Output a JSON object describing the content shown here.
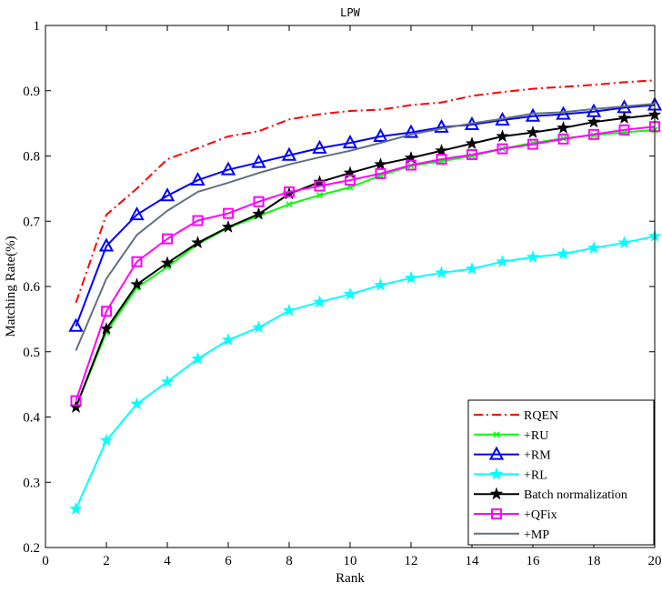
{
  "chart_data": {
    "type": "line",
    "title": "LPW",
    "xlabel": "Rank",
    "ylabel": "Matching Rate(%)",
    "xlim": [
      0,
      20
    ],
    "ylim": [
      0.2,
      1.0
    ],
    "xticks": [
      "0",
      "2",
      "4",
      "6",
      "8",
      "10",
      "12",
      "14",
      "16",
      "18",
      "20"
    ],
    "yticks": [
      "0.2",
      "0.3",
      "0.4",
      "0.5",
      "0.6",
      "0.7",
      "0.8",
      "0.9",
      "1"
    ],
    "grid": false,
    "legend_position": "bottom-right",
    "x": [
      1,
      2,
      3,
      4,
      5,
      6,
      7,
      8,
      9,
      10,
      11,
      12,
      13,
      14,
      15,
      16,
      17,
      18,
      19,
      20
    ],
    "series": [
      {
        "name": "RQEN",
        "color": "#ff0000",
        "dash": "dashdot",
        "marker": "none",
        "values": [
          0.575,
          0.71,
          0.75,
          0.795,
          0.812,
          0.83,
          0.838,
          0.856,
          0.864,
          0.869,
          0.871,
          0.878,
          0.882,
          0.892,
          0.898,
          0.903,
          0.906,
          0.909,
          0.913,
          0.916
        ]
      },
      {
        "name": "+RU",
        "color": "#00ff00",
        "dash": "solid",
        "marker": "x",
        "values": [
          0.415,
          0.53,
          0.598,
          0.63,
          0.665,
          0.69,
          0.708,
          0.726,
          0.74,
          0.752,
          0.77,
          0.785,
          0.792,
          0.8,
          0.811,
          0.82,
          0.827,
          0.832,
          0.836,
          0.84
        ]
      },
      {
        "name": "+RM",
        "color": "#0000ff",
        "dash": "solid",
        "marker": "triangle",
        "values": [
          0.539,
          0.662,
          0.71,
          0.739,
          0.763,
          0.779,
          0.79,
          0.801,
          0.812,
          0.82,
          0.83,
          0.836,
          0.844,
          0.848,
          0.855,
          0.861,
          0.864,
          0.868,
          0.874,
          0.878
        ]
      },
      {
        "name": "+RL",
        "color": "#00ffff",
        "dash": "solid",
        "marker": "star",
        "values": [
          0.259,
          0.364,
          0.42,
          0.454,
          0.489,
          0.518,
          0.537,
          0.563,
          0.576,
          0.588,
          0.602,
          0.613,
          0.621,
          0.627,
          0.638,
          0.645,
          0.65,
          0.659,
          0.667,
          0.677
        ]
      },
      {
        "name": "Batch normalization",
        "color": "#000000",
        "dash": "solid",
        "marker": "star",
        "values": [
          0.415,
          0.535,
          0.603,
          0.636,
          0.667,
          0.691,
          0.711,
          0.742,
          0.76,
          0.774,
          0.787,
          0.797,
          0.808,
          0.819,
          0.83,
          0.836,
          0.843,
          0.852,
          0.858,
          0.863
        ]
      },
      {
        "name": "+QFix",
        "color": "#ff00ff",
        "dash": "solid",
        "marker": "square",
        "values": [
          0.425,
          0.562,
          0.638,
          0.673,
          0.701,
          0.712,
          0.73,
          0.745,
          0.754,
          0.763,
          0.773,
          0.786,
          0.795,
          0.802,
          0.811,
          0.818,
          0.826,
          0.833,
          0.84,
          0.845
        ]
      },
      {
        "name": "+MP",
        "color": "#607080",
        "dash": "solid",
        "marker": "none",
        "values": [
          0.502,
          0.612,
          0.679,
          0.716,
          0.745,
          0.759,
          0.774,
          0.787,
          0.798,
          0.808,
          0.82,
          0.833,
          0.842,
          0.85,
          0.857,
          0.865,
          0.867,
          0.872,
          0.876,
          0.88
        ]
      }
    ]
  }
}
